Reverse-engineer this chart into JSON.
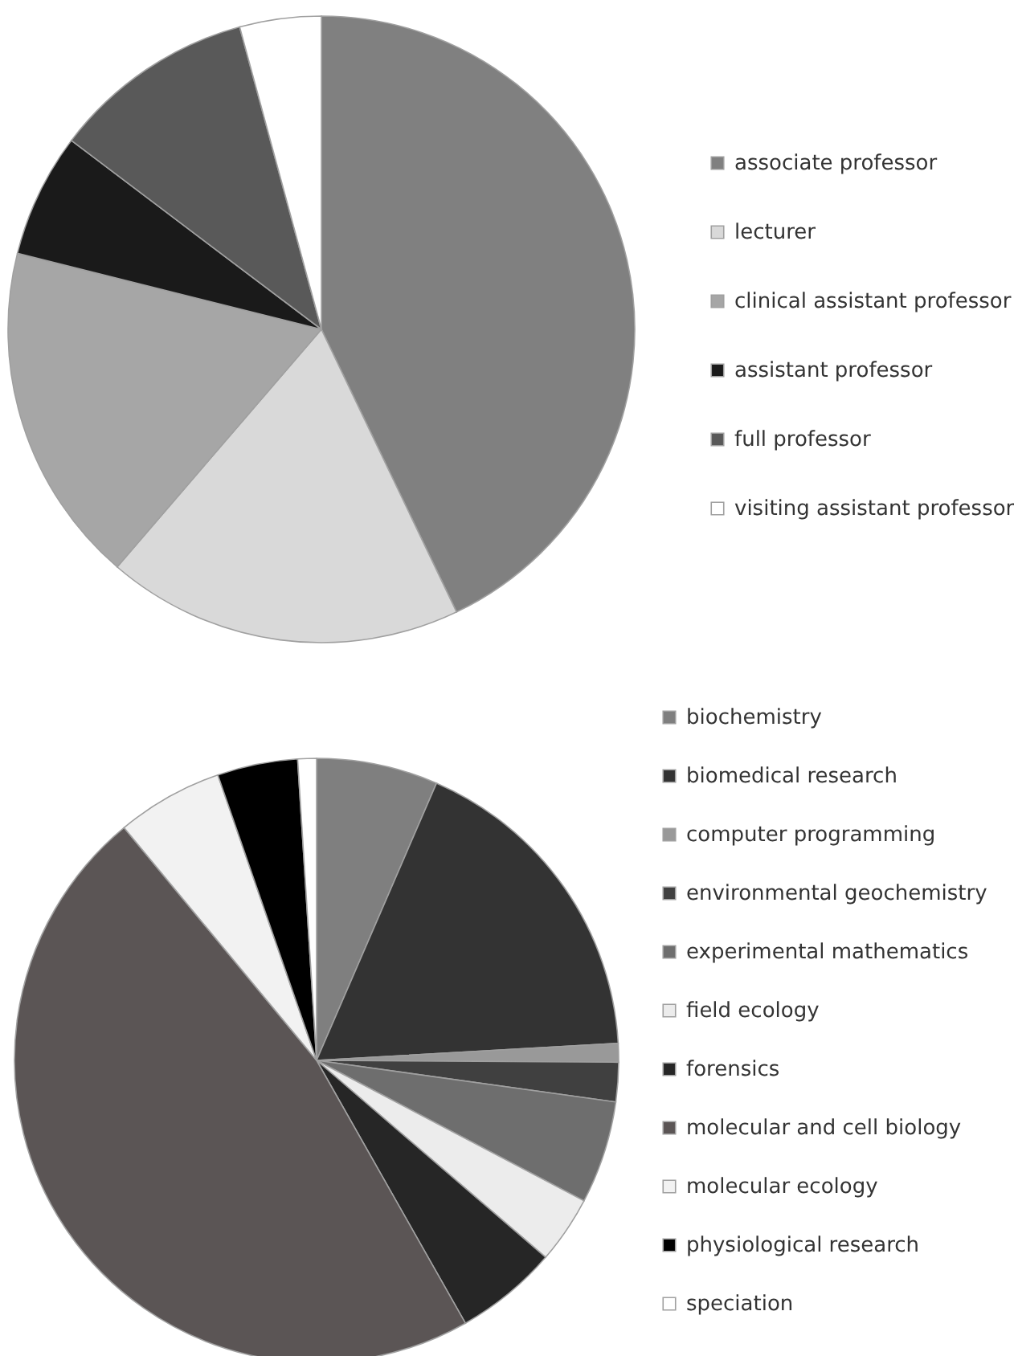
{
  "chart_data": [
    {
      "type": "pie",
      "categories": [
        "associate professor",
        "lecturer",
        "clinical assistant professor",
        "assistant professor",
        "full professor",
        "visiting assistant professor"
      ],
      "values": [
        42.9,
        18.4,
        17.6,
        6.4,
        10.5,
        4.2
      ],
      "colors": [
        "#808080",
        "#d9d9d9",
        "#a6a6a6",
        "#1a1a1a",
        "#595959",
        "#ffffff"
      ],
      "legend": "right"
    },
    {
      "type": "pie",
      "categories": [
        "biochemistry",
        "biomedical research",
        "computer programming",
        "environmental geochemistry",
        "experimental mathematics",
        "field ecology",
        "forensics",
        "molecular and cell biology",
        "molecular ecology",
        "physiological research",
        "speciation"
      ],
      "values": [
        6.5,
        17.6,
        1.0,
        2.1,
        5.5,
        3.6,
        5.5,
        47.2,
        5.7,
        4.3,
        1.0
      ],
      "colors": [
        "#7f7f7f",
        "#333333",
        "#999999",
        "#404040",
        "#6e6e6e",
        "#ececec",
        "#262626",
        "#5b5555",
        "#f2f2f2",
        "#000000",
        "#ffffff"
      ],
      "legend": "right"
    }
  ]
}
